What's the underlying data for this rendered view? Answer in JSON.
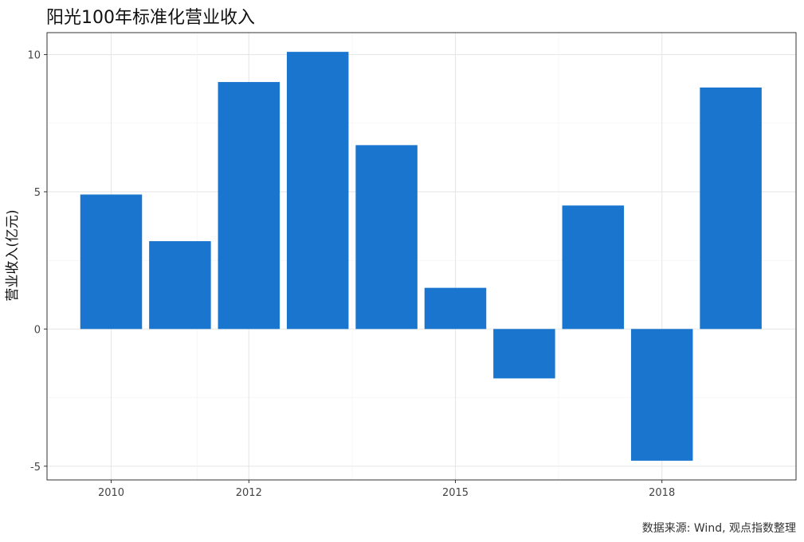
{
  "chart_data": {
    "type": "bar",
    "title": "阳光100年标准化营业收入",
    "xlabel": "",
    "ylabel": "营业收入(亿元)",
    "x": [
      2010,
      2011,
      2012,
      2013,
      2014,
      2015,
      2016,
      2017,
      2018,
      2019
    ],
    "values": [
      4.9,
      3.2,
      9.0,
      10.1,
      6.7,
      1.5,
      -1.8,
      4.5,
      -4.8,
      8.8
    ],
    "x_ticks": [
      "2010",
      "2012",
      "2015",
      "2018"
    ],
    "y_ticks": [
      "10",
      "5",
      "0",
      "-5"
    ],
    "ylim": [
      -5.5,
      10.8
    ],
    "grid": true,
    "bar_color": "#1a75cf"
  },
  "source": "数据来源: Wind, 观点指数整理"
}
